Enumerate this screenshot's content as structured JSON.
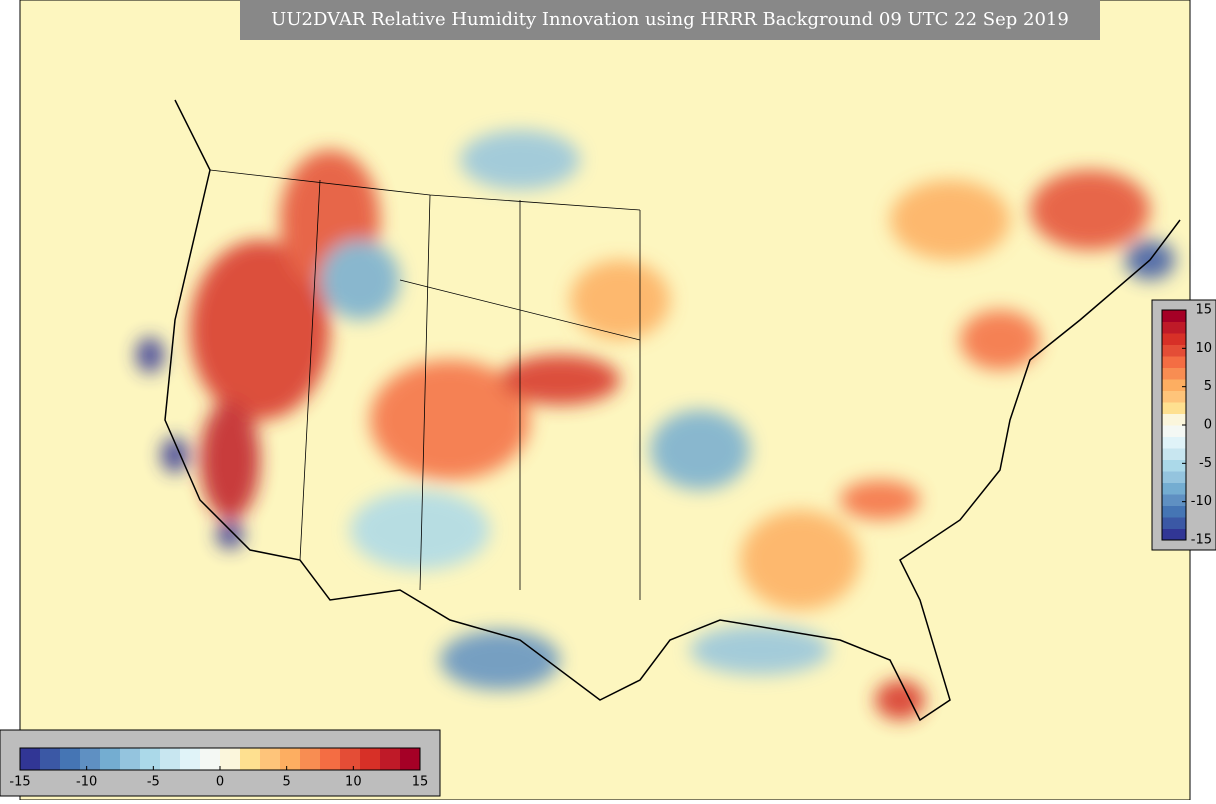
{
  "title": "UU2DVAR Relative Humidity Innovation using HRRR Background 09 UTC 22 Sep 2019",
  "colormap": [
    "#313695",
    "#3b58a5",
    "#4575b4",
    "#5f90c2",
    "#74add1",
    "#94c4de",
    "#abd9e9",
    "#c8e6f0",
    "#e0f3f8",
    "#f4f8f4",
    "#fbf6dc",
    "#fee090",
    "#fec47a",
    "#fdae61",
    "#f88d52",
    "#f46d43",
    "#e44d36",
    "#d73027",
    "#bf1a28",
    "#a50026"
  ],
  "colorbars": [
    {
      "orientation": "horizontal",
      "range": [
        -15,
        15
      ],
      "ticks": [
        -15,
        -10,
        -5,
        0,
        5,
        10,
        15
      ]
    },
    {
      "orientation": "vertical",
      "range": [
        -15,
        15
      ],
      "ticks": [
        -15,
        -10,
        -5,
        0,
        5,
        10,
        15
      ]
    }
  ]
}
